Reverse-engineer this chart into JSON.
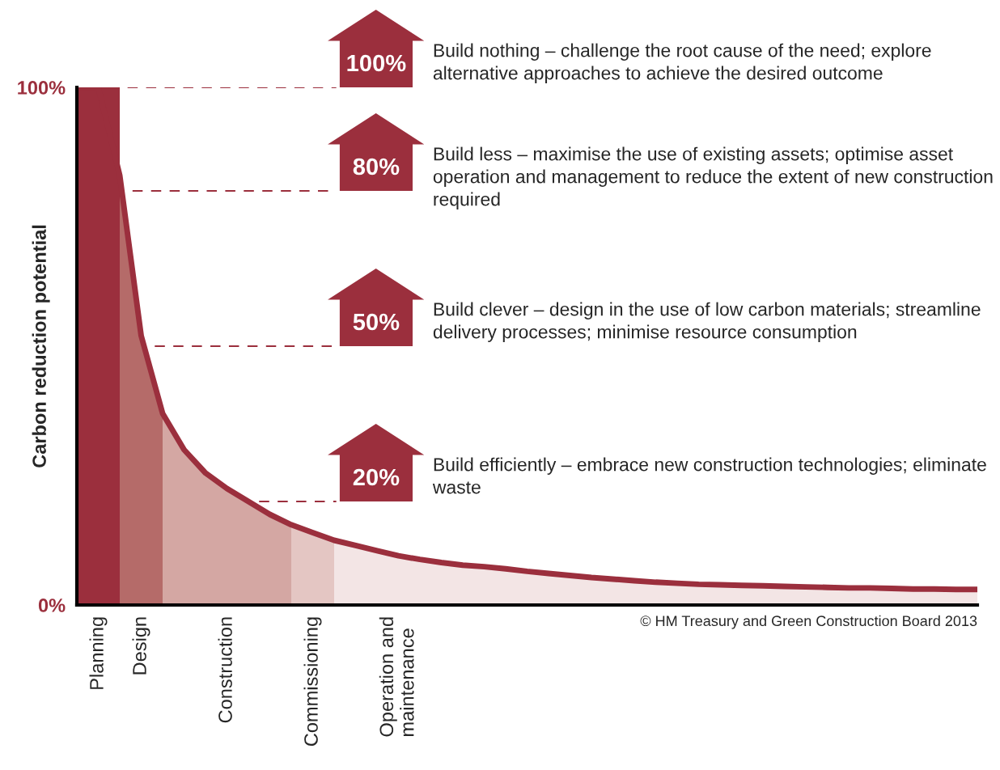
{
  "chart_data": {
    "type": "area",
    "ylabel": "Carbon reduction potential",
    "categories": [
      null,
      "Planning",
      null,
      "Design",
      null,
      null,
      null,
      "Construction",
      null,
      null,
      null,
      "Commissioning",
      null,
      null,
      null,
      "Operation and\nmaintenance",
      null,
      null,
      null,
      null,
      null,
      null,
      null,
      null,
      null,
      null,
      null,
      null,
      null,
      null,
      null,
      null,
      null,
      null,
      null,
      null,
      null,
      null,
      null,
      null,
      null,
      null,
      null
    ],
    "ylim": [
      0,
      100
    ],
    "yticks": [
      {
        "value": 0,
        "label": "0%"
      },
      {
        "value": 100,
        "label": "100%"
      }
    ],
    "series": [
      {
        "color": "#9b2f3d",
        "values": [
          100,
          100,
          100,
          null,
          null,
          null,
          null,
          null,
          null,
          null,
          null,
          null,
          null,
          null,
          null,
          null,
          null,
          null,
          null,
          null,
          null,
          null,
          null,
          null,
          null,
          null,
          null,
          null,
          null,
          null,
          null,
          null,
          null,
          null,
          null,
          null,
          null,
          null,
          null,
          null,
          null,
          null,
          null
        ]
      },
      {
        "color": "#b56b69",
        "values": [
          null,
          null,
          83,
          52,
          37,
          null,
          null,
          null,
          null,
          null,
          null,
          null,
          null,
          null,
          null,
          null,
          null,
          null,
          null,
          null,
          null,
          null,
          null,
          null,
          null,
          null,
          null,
          null,
          null,
          null,
          null,
          null,
          null,
          null,
          null,
          null,
          null,
          null,
          null,
          null,
          null,
          null,
          null
        ]
      },
      {
        "color": "#d4a7a3",
        "values": [
          null,
          null,
          null,
          null,
          37,
          30,
          25.5,
          22.5,
          20,
          17.5,
          15.5,
          null,
          null,
          null,
          null,
          null,
          null,
          null,
          null,
          null,
          null,
          null,
          null,
          null,
          null,
          null,
          null,
          null,
          null,
          null,
          null,
          null,
          null,
          null,
          null,
          null,
          null,
          null,
          null,
          null,
          null,
          null,
          null
        ]
      },
      {
        "color": "#e4c6c3",
        "values": [
          null,
          null,
          null,
          null,
          null,
          null,
          null,
          null,
          null,
          null,
          15.5,
          14,
          12.5,
          null,
          null,
          null,
          null,
          null,
          null,
          null,
          null,
          null,
          null,
          null,
          null,
          null,
          null,
          null,
          null,
          null,
          null,
          null,
          null,
          null,
          null,
          null,
          null,
          null,
          null,
          null,
          null,
          null,
          null
        ]
      },
      {
        "color": "#f3e5e5",
        "values": [
          null,
          null,
          null,
          null,
          null,
          null,
          null,
          null,
          null,
          null,
          null,
          null,
          12.5,
          11.5,
          10.5,
          9.5,
          8.8,
          8.2,
          7.7,
          7.4,
          7,
          6.5,
          6.1,
          5.7,
          5.3,
          5,
          4.7,
          4.4,
          4.2,
          4,
          3.9,
          3.8,
          3.7,
          3.6,
          3.5,
          3.4,
          3.3,
          3.3,
          3.2,
          3.1,
          3.1,
          3,
          3
        ]
      },
      {
        "type": "line",
        "color": "#9b2f3d",
        "values": [
          100,
          100,
          83,
          52,
          37,
          30,
          25.5,
          22.5,
          20,
          17.5,
          15.5,
          14,
          12.5,
          11.5,
          10.5,
          9.5,
          8.8,
          8.2,
          7.7,
          7.4,
          7,
          6.5,
          6.1,
          5.7,
          5.3,
          5,
          4.7,
          4.4,
          4.2,
          4,
          3.9,
          3.8,
          3.7,
          3.6,
          3.5,
          3.4,
          3.3,
          3.3,
          3.2,
          3.1,
          3.1,
          3,
          3
        ]
      }
    ],
    "ref_lines": [
      {
        "axis": "y",
        "value": 100,
        "label": "100%",
        "color": "#9b2f3d",
        "line_style": "dashed"
      },
      {
        "axis": "y",
        "value": 80,
        "label": "80%",
        "color": "#9b2f3d",
        "line_style": "dashed"
      },
      {
        "axis": "y",
        "value": 50,
        "label": "50%",
        "color": "#9b2f3d",
        "line_style": "dashed"
      },
      {
        "axis": "y",
        "value": 20,
        "label": "20%",
        "color": "#9b2f3d",
        "line_style": "dashed"
      }
    ],
    "annotations": [
      "Build nothing – challenge the root cause of the need; explore alternative approaches to achieve the desired outcome",
      "Build less – maximise the use of existing assets; optimise asset operation and management to reduce the extent of new construction required",
      "Build clever – design in the use of low carbon materials; streamline delivery processes; minimise resource consumption",
      "Build efficiently – embrace new construction technologies; eliminate waste",
      "© HM Treasury and Green Construction Board 2013"
    ],
    "grid": false,
    "legend": false
  }
}
